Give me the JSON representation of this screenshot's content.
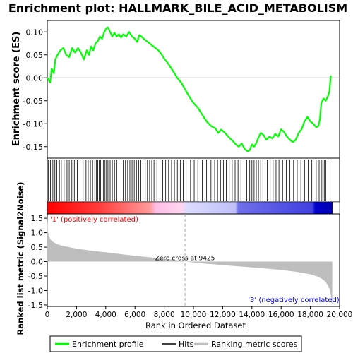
{
  "chart_data": {
    "type": "line",
    "title": "Enrichment plot: HALLMARK_BILE_ACID_METABOLISM",
    "colors": {
      "enrichment": "#00ff00",
      "hits": "#000000",
      "metric_fill": "#bebebe",
      "positive_label": "#ff0000",
      "negative_label": "#0000ff",
      "zero_line": "#aaaaaa"
    },
    "enrichment_panel": {
      "ylabel": "Enrichment score (ES)",
      "ylim": [
        -0.175,
        0.125
      ],
      "yticks": [
        "0.10",
        "0.05",
        "0.00",
        "-0.05",
        "-0.10",
        "-0.15"
      ],
      "ytick_values": [
        0.1,
        0.05,
        0.0,
        -0.05,
        -0.1,
        -0.15
      ],
      "series": [
        {
          "name": "Enrichment profile",
          "x": [
            0,
            200,
            300,
            450,
            550,
            700,
            900,
            1100,
            1300,
            1500,
            1700,
            1900,
            2100,
            2300,
            2500,
            2700,
            2850,
            3000,
            3150,
            3300,
            3450,
            3600,
            3750,
            3900,
            4050,
            4150,
            4300,
            4450,
            4600,
            4750,
            4900,
            5050,
            5200,
            5400,
            5600,
            5800,
            6000,
            6150,
            6300,
            6450,
            6600,
            6800,
            7000,
            7200,
            7400,
            7600,
            7800,
            8000,
            8300,
            8600,
            8900,
            9200,
            9425,
            9700,
            10000,
            10300,
            10600,
            10900,
            11200,
            11500,
            11700,
            11900,
            12100,
            12300,
            12500,
            12700,
            12900,
            13100,
            13300,
            13500,
            13700,
            13850,
            14000,
            14150,
            14300,
            14450,
            14600,
            14800,
            15000,
            15200,
            15400,
            15600,
            15800,
            16000,
            16200,
            16400,
            16600,
            16800,
            17000,
            17200,
            17400,
            17600,
            17800,
            18000,
            18200,
            18400,
            18550,
            18650,
            18750,
            18900,
            19050,
            19200,
            19300,
            19400
          ],
          "y": [
            0.0,
            -0.01,
            0.02,
            0.01,
            0.04,
            0.05,
            0.06,
            0.065,
            0.05,
            0.045,
            0.065,
            0.055,
            0.065,
            0.055,
            0.04,
            0.06,
            0.05,
            0.068,
            0.06,
            0.075,
            0.08,
            0.09,
            0.085,
            0.1,
            0.108,
            0.11,
            0.1,
            0.09,
            0.098,
            0.09,
            0.095,
            0.088,
            0.095,
            0.09,
            0.1,
            0.09,
            0.085,
            0.078,
            0.093,
            0.09,
            0.085,
            0.08,
            0.075,
            0.07,
            0.065,
            0.06,
            0.052,
            0.042,
            0.03,
            0.015,
            0.0,
            -0.012,
            -0.025,
            -0.04,
            -0.055,
            -0.065,
            -0.08,
            -0.095,
            -0.105,
            -0.11,
            -0.12,
            -0.113,
            -0.118,
            -0.125,
            -0.132,
            -0.138,
            -0.145,
            -0.15,
            -0.143,
            -0.155,
            -0.16,
            -0.158,
            -0.145,
            -0.15,
            -0.142,
            -0.13,
            -0.12,
            -0.125,
            -0.135,
            -0.128,
            -0.132,
            -0.122,
            -0.128,
            -0.112,
            -0.118,
            -0.128,
            -0.135,
            -0.14,
            -0.135,
            -0.12,
            -0.112,
            -0.095,
            -0.085,
            -0.095,
            -0.1,
            -0.108,
            -0.105,
            -0.09,
            -0.055,
            -0.045,
            -0.05,
            -0.04,
            -0.03,
            0.005
          ]
        }
      ]
    },
    "hits_panel": {
      "positions": [
        80,
        220,
        380,
        520,
        650,
        830,
        960,
        1150,
        1350,
        1500,
        1680,
        1850,
        2050,
        2250,
        2450,
        2650,
        2800,
        2950,
        3100,
        3250,
        3350,
        3450,
        3550,
        3650,
        3750,
        3850,
        3950,
        4050,
        4150,
        4300,
        4450,
        4600,
        4750,
        4900,
        5050,
        5200,
        5350,
        5500,
        5650,
        5800,
        5950,
        6100,
        6250,
        6400,
        6550,
        6700,
        6850,
        7000,
        7150,
        7300,
        7500,
        7700,
        7900,
        8100,
        8300,
        8500,
        8700,
        8900,
        9100,
        9300,
        9500,
        9800,
        10050,
        10300,
        10600,
        10900,
        11200,
        11450,
        11650,
        11850,
        12050,
        12250,
        12450,
        12650,
        12850,
        13050,
        13250,
        13450,
        13650,
        13850,
        14000,
        14150,
        14300,
        14450,
        14600,
        14750,
        14900,
        15050,
        15250,
        15450,
        15650,
        15850,
        16100,
        16350,
        16600,
        16850,
        17100,
        17350,
        17600,
        17850,
        18100,
        18400,
        18600,
        18750,
        18850,
        18950,
        19050,
        19200,
        19350
      ]
    },
    "metric_panel": {
      "ylabel": "Ranked list metric (Signal2Noise)",
      "ylim": [
        -1.55,
        1.65
      ],
      "yticks": [
        "1.5",
        "1.0",
        "0.5",
        "0.0",
        "-0.5",
        "-1.0",
        "-1.5"
      ],
      "ytick_values": [
        1.5,
        1.0,
        0.5,
        0.0,
        -0.5,
        -1.0,
        -1.5
      ],
      "x": [
        0,
        40,
        100,
        200,
        400,
        700,
        1000,
        1500,
        2000,
        3000,
        4000,
        5000,
        6000,
        7000,
        8000,
        9000,
        9425,
        10000,
        11000,
        12000,
        13000,
        14000,
        15000,
        16000,
        17000,
        17500,
        18000,
        18500,
        18800,
        19000,
        19150,
        19250,
        19350,
        19400,
        19450,
        19500
      ],
      "values": [
        1.6,
        1.05,
        0.9,
        0.78,
        0.68,
        0.6,
        0.55,
        0.5,
        0.45,
        0.38,
        0.32,
        0.26,
        0.2,
        0.15,
        0.1,
        0.04,
        0.0,
        -0.03,
        -0.08,
        -0.12,
        -0.16,
        -0.2,
        -0.24,
        -0.29,
        -0.35,
        -0.39,
        -0.44,
        -0.52,
        -0.6,
        -0.68,
        -0.78,
        -0.88,
        -1.0,
        -1.15,
        -1.42,
        -1.5
      ],
      "zero_cross_label": "Zero cross at 9425",
      "zero_cross_x": 9425,
      "positive_label": "'1' (positively correlated)",
      "negative_label": "'3' (negatively correlated)"
    },
    "xaxis": {
      "xlabel": "Rank in Ordered Dataset",
      "xlim": [
        0,
        20000
      ],
      "xticks": [
        "0",
        "2,000",
        "4,000",
        "6,000",
        "8,000",
        "10,000",
        "12,000",
        "14,000",
        "16,000",
        "18,000",
        "20,000"
      ],
      "xtick_values": [
        0,
        2000,
        4000,
        6000,
        8000,
        10000,
        12000,
        14000,
        16000,
        18000,
        20000
      ],
      "n_genes": 19500
    },
    "legend": {
      "placement": "bottom",
      "entries": [
        {
          "label": "Enrichment profile",
          "color": "#00ff00"
        },
        {
          "label": "Hits",
          "color": "#000000"
        },
        {
          "label": "Ranking metric scores",
          "color": "#bebebe"
        }
      ]
    }
  }
}
